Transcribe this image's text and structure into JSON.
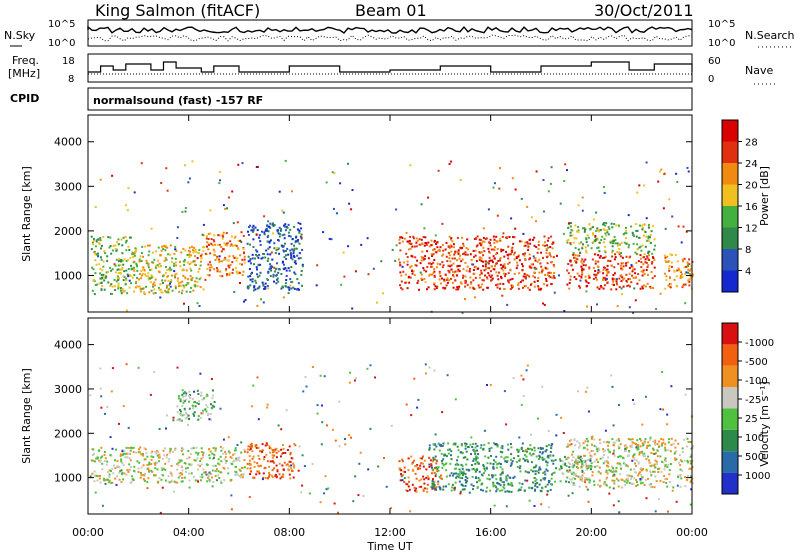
{
  "header": {
    "station": "King Salmon (fitACF)",
    "beam": "Beam 01",
    "date": "30/Oct/2011"
  },
  "noise_panel": {
    "left_label": "N.Sky",
    "right_label": "N.Search",
    "left_ticks": [
      "10^5",
      "10^0"
    ],
    "right_ticks": [
      "10^5",
      "10^0"
    ]
  },
  "freq_panel": {
    "left_label_line1": "Freq.",
    "left_label_line2": "[MHz]",
    "right_label": "Nave",
    "left_ticks": [
      "18",
      "8"
    ],
    "right_ticks": [
      "60",
      "0"
    ]
  },
  "cpid_panel": {
    "label": "CPID",
    "text": "normalsound (fast) -157 RF"
  },
  "chart_data": [
    {
      "type": "heatmap",
      "name": "power",
      "ylabel": "Slant Range [km]",
      "ylim": [
        180,
        4600
      ],
      "yticks": [
        "1000",
        "2000",
        "3000",
        "4000"
      ],
      "colorbar_label": "Power [dB]",
      "colorbar_ticks": [
        "4",
        "8",
        "12",
        "16",
        "20",
        "24",
        "28"
      ],
      "colorbar_colors": [
        "#1428d0",
        "#2a52b8",
        "#2f8a4a",
        "#44b040",
        "#f0c020",
        "#f08a10",
        "#e03010",
        "#d80000"
      ],
      "scatter_regions_hours_km": [
        {
          "t": [
            0.1,
            1.8
          ],
          "r": [
            600,
            1900
          ],
          "level": 3
        },
        {
          "t": [
            1.8,
            4.5
          ],
          "r": [
            600,
            1700
          ],
          "level": 4
        },
        {
          "t": [
            4.5,
            6.2
          ],
          "r": [
            1000,
            2000
          ],
          "level": 5
        },
        {
          "t": [
            6.3,
            8.5
          ],
          "r": [
            700,
            2200
          ],
          "level": 1
        },
        {
          "t": [
            12.3,
            18.5
          ],
          "r": [
            700,
            1900
          ],
          "level": 6
        },
        {
          "t": [
            19.0,
            22.5
          ],
          "r": [
            700,
            1500
          ],
          "level": 6
        },
        {
          "t": [
            19.0,
            22.5
          ],
          "r": [
            1500,
            2200
          ],
          "level": 3
        },
        {
          "t": [
            22.8,
            24.0
          ],
          "r": [
            700,
            1500
          ],
          "level": 5
        }
      ]
    },
    {
      "type": "heatmap",
      "name": "velocity",
      "ylabel": "Slant Range [km]",
      "ylim": [
        180,
        4600
      ],
      "yticks": [
        "1000",
        "2000",
        "3000",
        "4000"
      ],
      "colorbar_label": "Velocity [m s⁻¹]",
      "colorbar_ticks": [
        "1000",
        "500",
        "100",
        "25",
        "-25",
        "-100",
        "-500",
        "-1000"
      ],
      "colorbar_colors": [
        "#2030c8",
        "#2a6aa8",
        "#2e8a4a",
        "#50c040",
        "#c8c8c0",
        "#f09020",
        "#f06010",
        "#d81010"
      ],
      "scatter_regions_hours_km": [
        {
          "t": [
            0.1,
            6.2
          ],
          "r": [
            900,
            1700
          ],
          "level": 4
        },
        {
          "t": [
            3.5,
            5.0
          ],
          "r": [
            2300,
            3000
          ],
          "level": 3
        },
        {
          "t": [
            6.3,
            8.2
          ],
          "r": [
            1000,
            1800
          ],
          "level": 6
        },
        {
          "t": [
            12.3,
            14.0
          ],
          "r": [
            700,
            1500
          ],
          "level": 6
        },
        {
          "t": [
            13.5,
            18.5
          ],
          "r": [
            700,
            1800
          ],
          "level": 2
        },
        {
          "t": [
            18.5,
            20.0
          ],
          "r": [
            900,
            1500
          ],
          "level": 3
        },
        {
          "t": [
            19.0,
            24.0
          ],
          "r": [
            800,
            1900
          ],
          "level": 4
        }
      ]
    }
  ],
  "xaxis": {
    "label": "Time UT",
    "ticks": [
      "00:00",
      "04:00",
      "08:00",
      "12:00",
      "16:00",
      "20:00",
      "00:00"
    ]
  },
  "colors": {
    "axis": "#000000",
    "background": "#ffffff"
  }
}
